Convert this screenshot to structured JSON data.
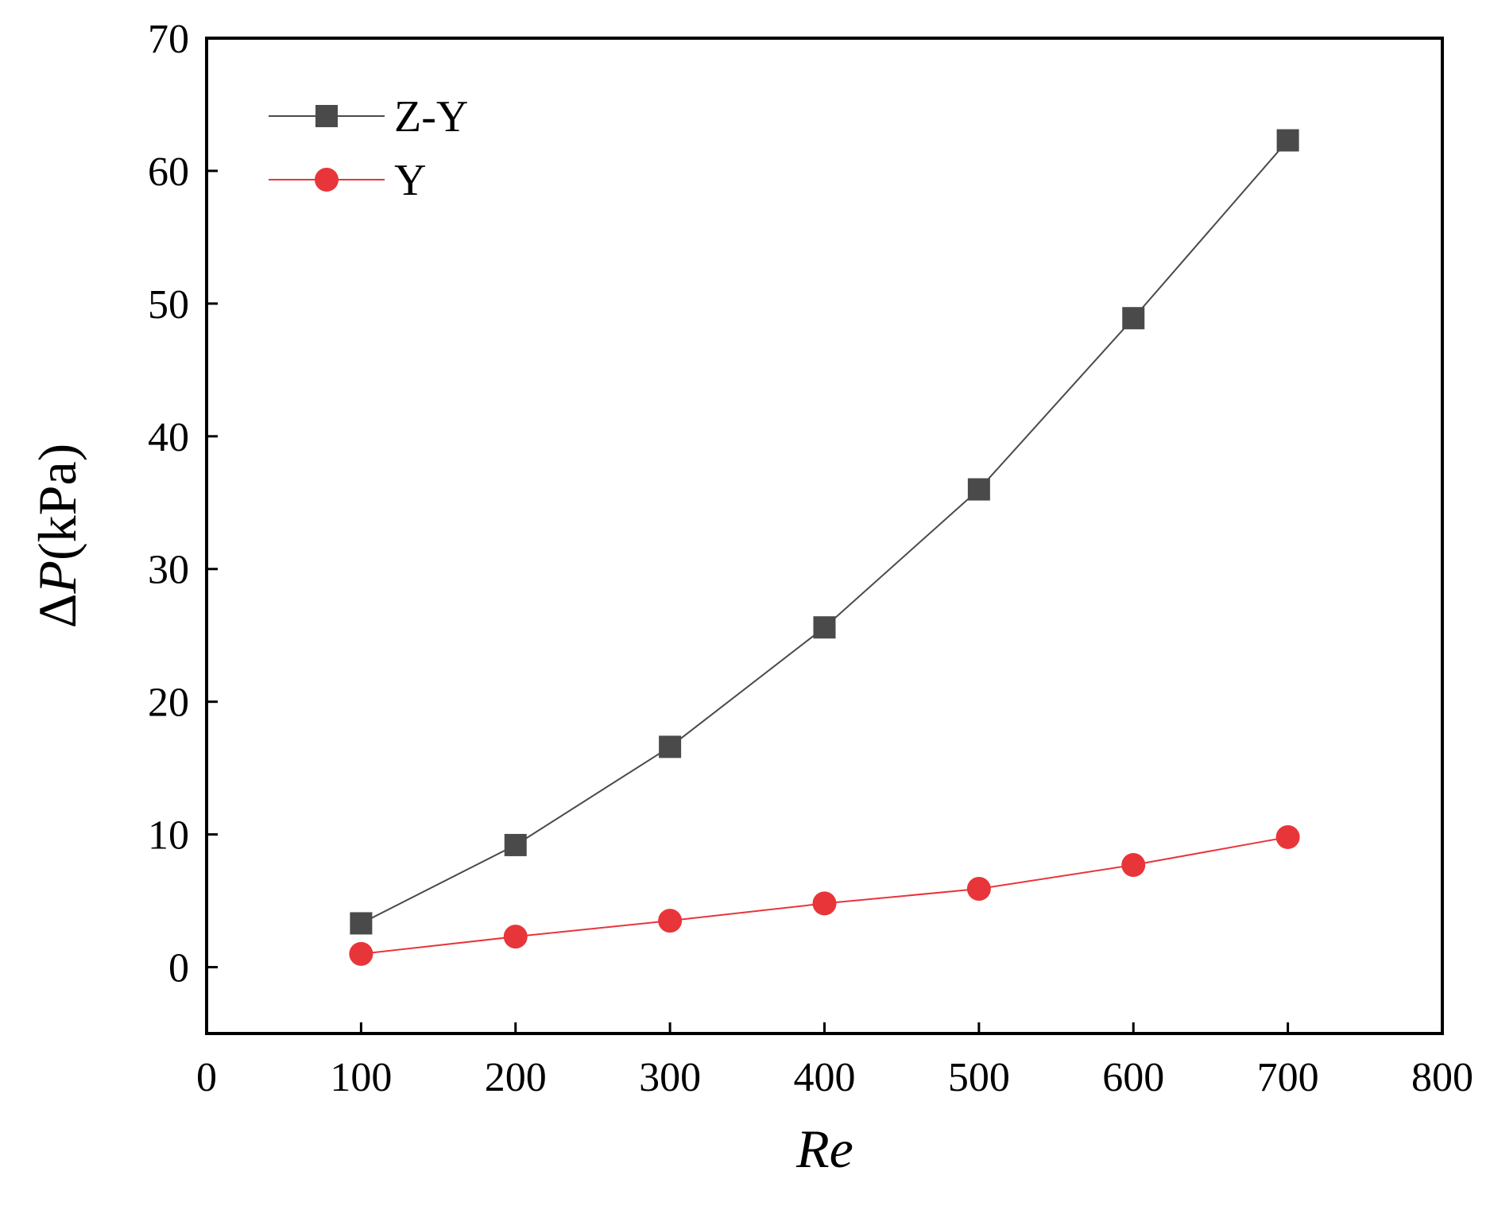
{
  "chart_data": {
    "type": "line",
    "title": "",
    "xlabel": "Re",
    "ylabel": {
      "symbol": "Δ",
      "variable": "P",
      "unit": "(kPa)"
    },
    "xlim": [
      0,
      800
    ],
    "ylim": [
      -5,
      70
    ],
    "x_ticks": [
      0,
      100,
      200,
      300,
      400,
      500,
      600,
      700,
      800
    ],
    "y_ticks": [
      0,
      10,
      20,
      30,
      40,
      50,
      60,
      70
    ],
    "legend_position": "top-left",
    "series": [
      {
        "name": "Z-Y",
        "marker": "square",
        "color": "#4a4a4a",
        "x": [
          100,
          200,
          300,
          400,
          500,
          600,
          700
        ],
        "y": [
          3.3,
          9.2,
          16.6,
          25.6,
          36.0,
          48.9,
          62.3
        ]
      },
      {
        "name": "Y",
        "marker": "circle",
        "color": "#e8353a",
        "x": [
          100,
          200,
          300,
          400,
          500,
          600,
          700
        ],
        "y": [
          1.0,
          2.3,
          3.5,
          4.8,
          5.9,
          7.7,
          9.8
        ]
      }
    ]
  }
}
